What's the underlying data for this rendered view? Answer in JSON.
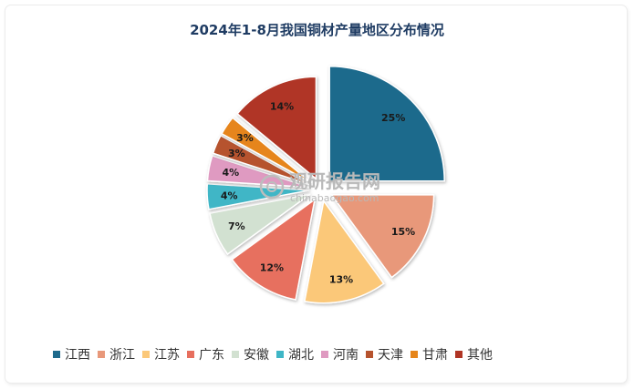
{
  "chart_data": {
    "type": "pie",
    "title": "2024年1-8月我国铜材产量地区分布情况",
    "categories": [
      "江西",
      "浙江",
      "江苏",
      "广东",
      "安徽",
      "湖北",
      "河南",
      "天津",
      "甘肃",
      "其他"
    ],
    "values": [
      25,
      15,
      13,
      12,
      7,
      4,
      4,
      3,
      3,
      14
    ],
    "value_labels": [
      "25%",
      "15%",
      "13%",
      "12%",
      "7%",
      "4%",
      "4%",
      "3%",
      "3%",
      "14%"
    ],
    "colors": [
      "#1e6a8c",
      "#e8987a",
      "#fbc879",
      "#e76f5e",
      "#d2e1d1",
      "#3fb6c6",
      "#df9ac1",
      "#b6532e",
      "#e6851a",
      "#b03525"
    ],
    "legend_position": "bottom",
    "exploded": true
  },
  "watermark": {
    "text": "观研报告网",
    "url_text": "chinabaogao.com"
  }
}
